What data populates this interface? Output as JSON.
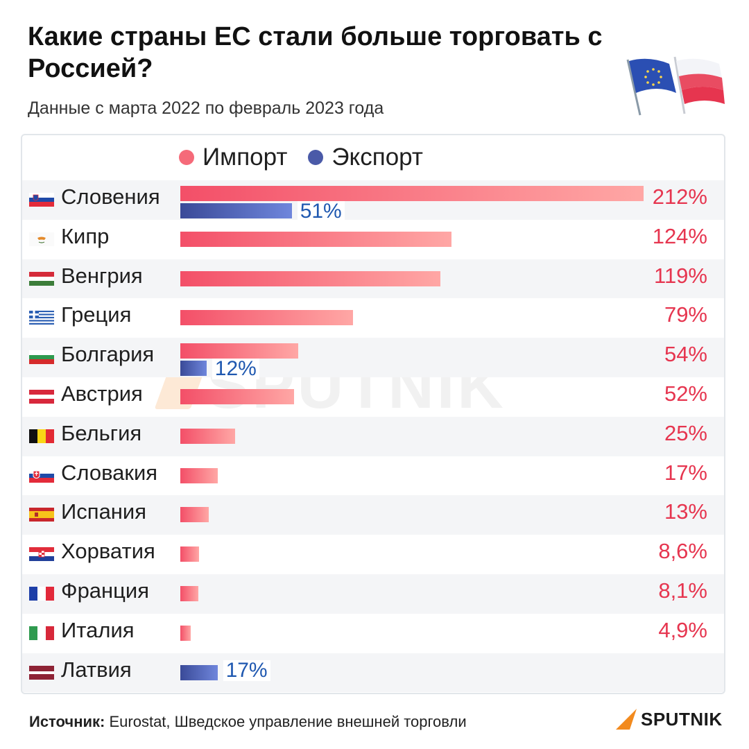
{
  "header": {
    "title": "Какие страны ЕС стали больше торговать с Россией?",
    "subtitle": "Данные с марта 2022 по февраль 2023 года"
  },
  "legend": {
    "import_label": "Импорт",
    "export_label": "Экспорт"
  },
  "watermark": "SPUTNIK",
  "colors": {
    "import": "#f34f68",
    "export": "#3a4a98",
    "import_value": "#e6354f",
    "export_value": "#1f58b0"
  },
  "chart_data": {
    "type": "bar",
    "orientation": "horizontal",
    "categories": [
      "Словения",
      "Кипр",
      "Венгрия",
      "Греция",
      "Болгария",
      "Австрия",
      "Бельгия",
      "Словакия",
      "Испания",
      "Хорватия",
      "Франция",
      "Италия",
      "Латвия"
    ],
    "series": [
      {
        "name": "Импорт",
        "values": [
          212,
          124,
          119,
          79,
          54,
          52,
          25,
          17,
          13,
          8.6,
          8.1,
          4.9,
          null
        ],
        "labels": [
          "212%",
          "124%",
          "119%",
          "79%",
          "54%",
          "52%",
          "25%",
          "17%",
          "13%",
          "8,6%",
          "8,1%",
          "4,9%",
          ""
        ]
      },
      {
        "name": "Экспорт",
        "values": [
          51,
          null,
          null,
          null,
          12,
          null,
          null,
          null,
          null,
          null,
          null,
          null,
          17
        ],
        "labels": [
          "51%",
          "",
          "",
          "",
          "12%",
          "",
          "",
          "",
          "",
          "",
          "",
          "",
          "17%"
        ]
      }
    ],
    "unit": "%",
    "legend_position": "top",
    "grid": false
  },
  "flags": [
    "slovenia-flag",
    "cyprus-flag",
    "hungary-flag",
    "greece-flag",
    "bulgaria-flag",
    "austria-flag",
    "belgium-flag",
    "slovakia-flag",
    "spain-flag",
    "croatia-flag",
    "france-flag",
    "italy-flag",
    "latvia-flag"
  ],
  "footer": {
    "source_label": "Источник:",
    "source_text": "Eurostat, Шведское управление внешней торговли",
    "brand": "SPUTNIK"
  }
}
